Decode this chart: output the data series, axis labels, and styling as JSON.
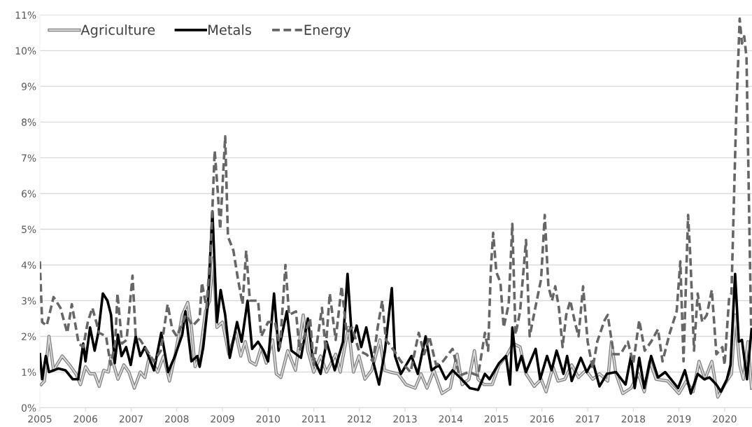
{
  "chart_data": {
    "type": "line",
    "xlim": [
      2005,
      2020.6
    ],
    "xticks": [
      2005,
      2006,
      2007,
      2008,
      2009,
      2010,
      2011,
      2012,
      2013,
      2014,
      2015,
      2016,
      2017,
      2018,
      2019,
      2020
    ],
    "ylim": [
      0,
      11
    ],
    "yticks": [
      {
        "value": 0,
        "label": "0%"
      },
      {
        "value": 1,
        "label": "1%"
      },
      {
        "value": 2,
        "label": "2%"
      },
      {
        "value": 3,
        "label": "3%"
      },
      {
        "value": 4,
        "label": "4%"
      },
      {
        "value": 5,
        "label": "5%"
      },
      {
        "value": 6,
        "label": "6%"
      },
      {
        "value": 7,
        "label": "7%"
      },
      {
        "value": 8,
        "label": "8%"
      },
      {
        "value": 9,
        "label": "9%"
      },
      {
        "value": 10,
        "label": "10%"
      },
      {
        "value": 11,
        "label": "11%"
      }
    ],
    "grid": "y",
    "legend": "top left",
    "marker": "none",
    "series": [
      {
        "name": "Agriculture",
        "color": "#d9d9d9",
        "line_style": "solid",
        "x": [
          2005.03,
          2005.1,
          2005.2,
          2005.3,
          2005.49,
          2005.65,
          2005.79,
          2005.89,
          2006.0,
          2006.1,
          2006.2,
          2006.3,
          2006.4,
          2006.5,
          2006.56,
          2006.71,
          2006.84,
          2006.95,
          2007.07,
          2007.2,
          2007.3,
          2007.4,
          2007.58,
          2007.71,
          2007.84,
          2007.96,
          2008.12,
          2008.24,
          2008.32,
          2008.4,
          2008.5,
          2008.63,
          2008.72,
          2008.8,
          2008.88,
          2009.0,
          2009.14,
          2009.29,
          2009.4,
          2009.5,
          2009.6,
          2009.73,
          2009.85,
          2009.96,
          2010.03,
          2010.1,
          2010.18,
          2010.28,
          2010.43,
          2010.6,
          2010.77,
          2010.87,
          2011.0,
          2011.15,
          2011.28,
          2011.48,
          2011.58,
          2011.76,
          2011.87,
          2011.99,
          2012.12,
          2012.27,
          2012.45,
          2012.55,
          2012.68,
          2012.85,
          2013.02,
          2013.22,
          2013.35,
          2013.48,
          2013.63,
          2013.81,
          2013.99,
          2014.14,
          2014.25,
          2014.4,
          2014.52,
          2014.6,
          2014.73,
          2014.91,
          2015.06,
          2015.22,
          2015.37,
          2015.52,
          2015.65,
          2015.83,
          2015.98,
          2016.09,
          2016.24,
          2016.35,
          2016.5,
          2016.65,
          2016.8,
          2016.96,
          2017.11,
          2017.26,
          2017.44,
          2017.52,
          2017.62,
          2017.77,
          2017.95,
          2018.11,
          2018.24,
          2018.36,
          2018.5,
          2018.75,
          2019.0,
          2019.16,
          2019.31,
          2019.44,
          2019.57,
          2019.72,
          2019.85,
          2020.0,
          2020.15,
          2020.23,
          2020.33,
          2020.41,
          2020.51,
          2020.59
        ],
        "values": [
          0.65,
          0.75,
          2.0,
          1.05,
          1.45,
          1.2,
          0.95,
          0.65,
          1.15,
          0.95,
          0.95,
          0.6,
          1.05,
          1.0,
          1.45,
          0.8,
          1.2,
          1.0,
          0.55,
          1.0,
          0.85,
          1.45,
          1.0,
          1.45,
          0.75,
          1.45,
          2.6,
          2.95,
          2.25,
          1.15,
          1.45,
          2.7,
          3.0,
          4.2,
          2.25,
          2.4,
          1.5,
          2.1,
          1.45,
          1.85,
          1.3,
          1.2,
          1.7,
          1.25,
          1.6,
          1.9,
          0.95,
          0.85,
          1.6,
          1.05,
          2.6,
          1.6,
          1.0,
          1.45,
          1.0,
          1.5,
          1.0,
          2.25,
          1.0,
          1.45,
          0.8,
          1.05,
          1.9,
          1.05,
          1.0,
          0.95,
          0.65,
          0.55,
          0.95,
          0.55,
          1.05,
          0.4,
          0.55,
          1.5,
          0.65,
          0.8,
          1.6,
          0.8,
          0.65,
          0.65,
          1.2,
          1.45,
          1.8,
          1.7,
          0.95,
          0.6,
          0.8,
          0.45,
          1.15,
          0.75,
          0.8,
          1.2,
          0.85,
          1.05,
          0.8,
          0.95,
          0.75,
          1.85,
          0.95,
          0.4,
          0.55,
          0.95,
          0.45,
          1.3,
          0.8,
          0.75,
          0.4,
          0.75,
          0.45,
          1.3,
          0.8,
          1.3,
          0.3,
          0.65,
          0.95,
          2.6,
          1.2,
          0.8,
          1.85,
          0.55
        ]
      },
      {
        "name": "Metals",
        "color": "#000000",
        "line_style": "solid",
        "x": [
          2005.0,
          2005.05,
          2005.13,
          2005.2,
          2005.41,
          2005.56,
          2005.72,
          2005.84,
          2005.95,
          2006.0,
          2006.1,
          2006.2,
          2006.28,
          2006.38,
          2006.48,
          2006.56,
          2006.64,
          2006.71,
          2006.79,
          2006.89,
          2006.99,
          2007.1,
          2007.2,
          2007.3,
          2007.5,
          2007.66,
          2007.81,
          2007.96,
          2008.12,
          2008.19,
          2008.32,
          2008.45,
          2008.5,
          2008.58,
          2008.68,
          2008.78,
          2008.88,
          2008.96,
          2009.06,
          2009.16,
          2009.32,
          2009.42,
          2009.55,
          2009.65,
          2009.78,
          2009.9,
          2010.0,
          2010.13,
          2010.23,
          2010.41,
          2010.51,
          2010.72,
          2010.87,
          2010.97,
          2011.15,
          2011.28,
          2011.46,
          2011.64,
          2011.74,
          2011.84,
          2011.94,
          2012.04,
          2012.15,
          2012.3,
          2012.43,
          2012.56,
          2012.71,
          2012.78,
          2012.91,
          2013.14,
          2013.28,
          2013.45,
          2013.58,
          2013.74,
          2013.89,
          2014.04,
          2014.24,
          2014.42,
          2014.6,
          2014.75,
          2014.85,
          2015.06,
          2015.21,
          2015.3,
          2015.35,
          2015.45,
          2015.55,
          2015.65,
          2015.86,
          2015.96,
          2016.11,
          2016.21,
          2016.32,
          2016.47,
          2016.55,
          2016.65,
          2016.85,
          2016.98,
          2017.11,
          2017.26,
          2017.42,
          2017.62,
          2017.83,
          2017.95,
          2018.03,
          2018.13,
          2018.24,
          2018.39,
          2018.54,
          2018.7,
          2018.98,
          2019.13,
          2019.26,
          2019.41,
          2019.55,
          2019.67,
          2019.82,
          2019.92,
          2020.05,
          2020.13,
          2020.23,
          2020.31,
          2020.38,
          2020.49,
          2020.59
        ],
        "values": [
          1.5,
          0.8,
          1.45,
          1.0,
          1.1,
          1.05,
          0.8,
          0.8,
          1.8,
          1.3,
          2.25,
          1.6,
          2.1,
          3.2,
          3.0,
          2.6,
          1.25,
          2.05,
          1.45,
          1.7,
          1.2,
          2.0,
          1.45,
          1.7,
          1.05,
          2.1,
          1.0,
          1.45,
          2.05,
          2.7,
          1.3,
          1.45,
          1.15,
          1.7,
          2.9,
          5.5,
          2.4,
          3.3,
          2.6,
          1.4,
          2.4,
          1.85,
          3.0,
          1.65,
          1.85,
          1.6,
          1.3,
          3.2,
          1.6,
          2.7,
          1.6,
          1.4,
          2.5,
          1.45,
          0.95,
          1.85,
          1.05,
          1.85,
          3.75,
          1.85,
          2.3,
          1.7,
          2.25,
          1.3,
          0.65,
          1.6,
          3.35,
          1.45,
          0.95,
          1.45,
          0.95,
          2.0,
          1.05,
          1.2,
          0.8,
          1.05,
          0.8,
          0.55,
          0.5,
          0.95,
          0.8,
          1.25,
          1.45,
          0.65,
          2.25,
          1.05,
          1.45,
          1.0,
          1.65,
          0.8,
          1.45,
          1.05,
          1.6,
          0.95,
          1.45,
          0.75,
          1.4,
          1.0,
          1.3,
          0.6,
          0.95,
          1.0,
          0.65,
          1.45,
          0.55,
          1.4,
          0.55,
          1.45,
          0.85,
          1.0,
          0.55,
          1.05,
          0.4,
          0.95,
          0.8,
          0.85,
          0.65,
          0.45,
          0.8,
          1.2,
          3.75,
          1.85,
          1.9,
          0.8,
          2.2
        ]
      },
      {
        "name": "Energy",
        "color": "#666666",
        "line_style": "dashed",
        "x": [
          2005.0,
          2005.05,
          2005.15,
          2005.3,
          2005.45,
          2005.6,
          2005.7,
          2005.85,
          2005.95,
          2006.05,
          2006.15,
          2006.3,
          2006.45,
          2006.55,
          2006.65,
          2006.7,
          2006.8,
          2006.9,
          2007.03,
          2007.1,
          2007.2,
          2007.35,
          2007.5,
          2007.65,
          2007.8,
          2007.9,
          2008.0,
          2008.1,
          2008.2,
          2008.35,
          2008.5,
          2008.55,
          2008.65,
          2008.75,
          2008.83,
          2008.9,
          2008.95,
          2009.06,
          2009.12,
          2009.24,
          2009.34,
          2009.44,
          2009.52,
          2009.6,
          2009.78,
          2009.85,
          2010.0,
          2010.15,
          2010.26,
          2010.38,
          2010.46,
          2010.61,
          2010.69,
          2010.92,
          2011.0,
          2011.18,
          2011.26,
          2011.35,
          2011.48,
          2011.61,
          2011.72,
          2011.84,
          2011.99,
          2012.15,
          2012.3,
          2012.4,
          2012.5,
          2012.58,
          2012.76,
          2012.91,
          2013.12,
          2013.3,
          2013.42,
          2013.53,
          2013.68,
          2013.83,
          2014.04,
          2014.19,
          2014.4,
          2014.6,
          2014.75,
          2014.82,
          2014.88,
          2014.93,
          2015.0,
          2015.09,
          2015.16,
          2015.27,
          2015.35,
          2015.42,
          2015.52,
          2015.65,
          2015.73,
          2015.83,
          2015.98,
          2016.06,
          2016.14,
          2016.22,
          2016.29,
          2016.37,
          2016.45,
          2016.53,
          2016.62,
          2016.72,
          2016.8,
          2016.9,
          2017.0,
          2017.11,
          2017.21,
          2017.37,
          2017.44,
          2017.57,
          2017.72,
          2017.88,
          2018.0,
          2018.13,
          2018.25,
          2018.39,
          2018.54,
          2018.64,
          2018.8,
          2018.95,
          2019.03,
          2019.1,
          2019.2,
          2019.25,
          2019.33,
          2019.41,
          2019.51,
          2019.61,
          2019.72,
          2019.82,
          2019.95,
          2020.0,
          2020.1,
          2020.15,
          2020.25,
          2020.33,
          2020.38,
          2020.43,
          2020.48,
          2020.53,
          2020.58
        ],
        "values": [
          4.1,
          2.4,
          2.3,
          3.1,
          2.8,
          2.1,
          2.9,
          1.8,
          1.7,
          2.4,
          2.8,
          2.1,
          2.0,
          1.2,
          1.8,
          3.2,
          1.8,
          1.9,
          3.7,
          2.0,
          1.9,
          1.6,
          1.3,
          1.6,
          2.9,
          2.2,
          2.0,
          2.3,
          2.6,
          2.3,
          2.5,
          3.5,
          2.8,
          4.6,
          7.2,
          6.0,
          5.0,
          7.6,
          4.8,
          4.4,
          3.6,
          2.9,
          4.4,
          3.0,
          3.0,
          2.0,
          2.4,
          2.4,
          1.7,
          4.0,
          2.6,
          2.7,
          1.6,
          2.5,
          1.2,
          2.8,
          1.6,
          3.2,
          1.9,
          3.4,
          2.1,
          2.25,
          1.6,
          1.5,
          1.3,
          2.25,
          3.0,
          1.9,
          1.6,
          1.3,
          1.0,
          2.1,
          1.5,
          2.0,
          1.2,
          1.3,
          1.65,
          0.9,
          1.0,
          0.9,
          2.1,
          1.6,
          3.9,
          4.9,
          3.8,
          3.5,
          2.25,
          2.9,
          5.15,
          2.05,
          2.7,
          4.7,
          2.0,
          2.65,
          3.6,
          5.4,
          3.4,
          3.0,
          3.4,
          2.8,
          1.7,
          2.6,
          3.0,
          2.4,
          2.0,
          3.4,
          1.85,
          1.1,
          1.85,
          2.45,
          2.6,
          1.5,
          1.5,
          1.85,
          1.25,
          2.45,
          1.6,
          1.85,
          2.2,
          1.3,
          2.1,
          2.7,
          4.1,
          1.3,
          5.4,
          4.2,
          1.6,
          3.2,
          2.4,
          2.6,
          3.3,
          1.5,
          1.7,
          1.2,
          3.1,
          3.2,
          8.0,
          10.9,
          10.2,
          10.4,
          9.8,
          6.0,
          2.3
        ]
      }
    ]
  }
}
